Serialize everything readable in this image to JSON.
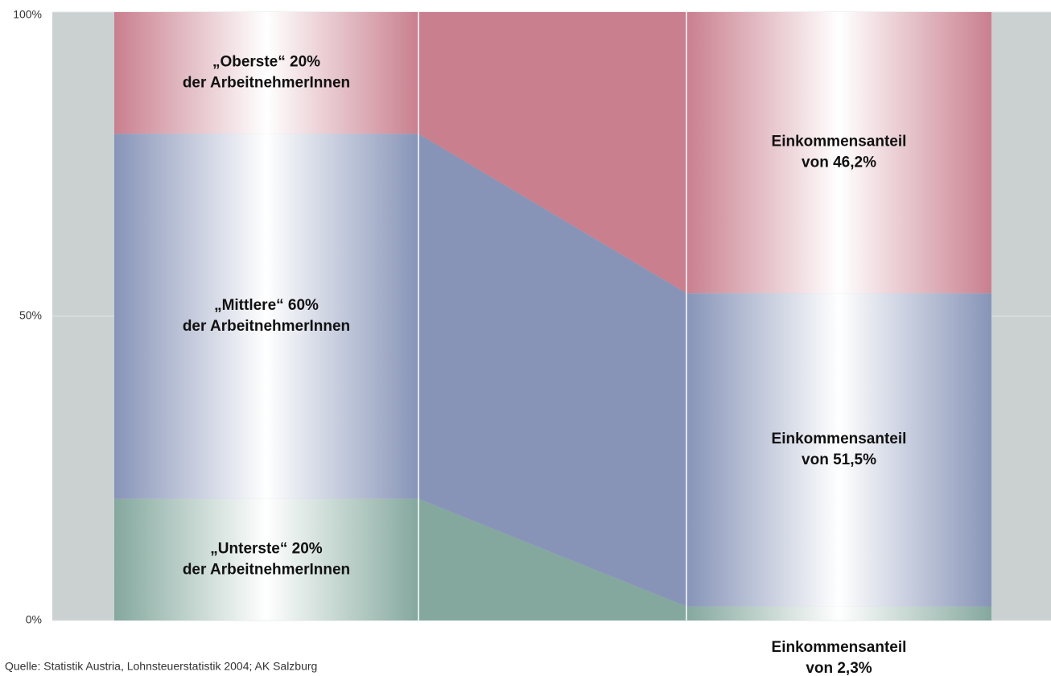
{
  "chart_data": {
    "type": "stacked_bar_flow",
    "categories": [
      null,
      null
    ],
    "series": [
      {
        "color": "#84a89d",
        "values": [
          20,
          2.3
        ],
        "value_labels": [
          [
            "„Unterste“ 20%",
            "der ArbeitnehmerInnen"
          ],
          [
            "Einkommensanteil",
            "von 2,3%"
          ]
        ]
      },
      {
        "color": "#8794b8",
        "values": [
          60,
          51.5
        ],
        "value_labels": [
          [
            "„Mittlere“ 60%",
            "der ArbeitnehmerInnen"
          ],
          [
            "Einkommensanteil",
            "von 51,5%"
          ]
        ]
      },
      {
        "color": "#c97f8e",
        "values": [
          20,
          46.2
        ],
        "value_labels": [
          [
            "„Oberste“ 20%",
            "der ArbeitnehmerInnen"
          ],
          [
            "Einkommensanteil",
            "von 46,2%"
          ]
        ]
      }
    ],
    "ylim": [
      0,
      100
    ],
    "yticks": [
      {
        "value": 0,
        "label": "0%"
      },
      {
        "value": 50,
        "label": "50%"
      },
      {
        "value": 100,
        "label": "100%"
      }
    ],
    "grid": true,
    "source": "Quelle: Statistik Austria, Lohnsteuerstatistik 2004; AK Salzburg"
  }
}
